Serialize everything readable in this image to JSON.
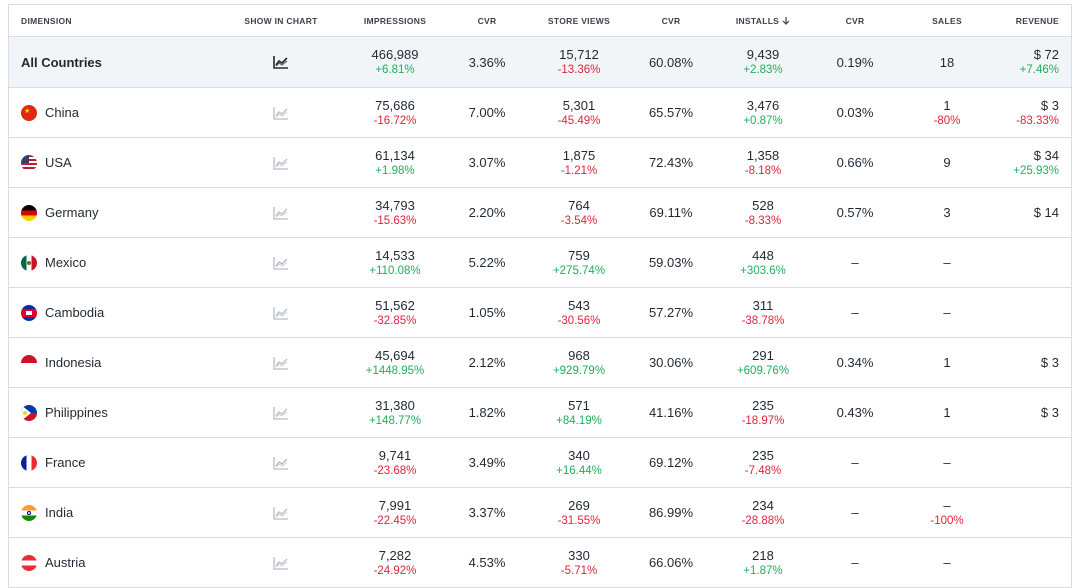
{
  "header": {
    "dimension": "DIMENSION",
    "show_in_chart": "SHOW IN CHART",
    "impressions": "IMPRESSIONS",
    "cvr1": "CVR",
    "store_views": "STORE VIEWS",
    "cvr2": "CVR",
    "installs": "INSTALLS",
    "installs_sort_icon": "arrow-down-icon",
    "cvr3": "CVR",
    "sales": "SALES",
    "revenue": "REVENUE"
  },
  "colors": {
    "positive": "#1fae5b",
    "negative": "#e0243a",
    "total_bg": "#f2f5f8",
    "border": "#d9dde3"
  },
  "total": {
    "name": "All Countries",
    "chart_icon": "chart-line-icon",
    "impressions": "466,989",
    "impressions_change": "+6.81%",
    "cvr1": "3.36%",
    "store_views": "15,712",
    "store_views_change": "-13.36%",
    "cvr2": "60.08%",
    "installs": "9,439",
    "installs_change": "+2.83%",
    "cvr3": "0.19%",
    "sales": "18",
    "revenue": "$ 72",
    "revenue_change": "+7.46%"
  },
  "rows": [
    {
      "name": "China",
      "flag": "china-flag-icon",
      "impressions": "75,686",
      "impressions_change": "-16.72%",
      "cvr1": "7.00%",
      "store_views": "5,301",
      "store_views_change": "-45.49%",
      "cvr2": "65.57%",
      "installs": "3,476",
      "installs_change": "+0.87%",
      "cvr3": "0.03%",
      "sales": "1",
      "sales_change": "-80%",
      "revenue": "$ 3",
      "revenue_change": "-83.33%"
    },
    {
      "name": "USA",
      "flag": "usa-flag-icon",
      "impressions": "61,134",
      "impressions_change": "+1.98%",
      "cvr1": "3.07%",
      "store_views": "1,875",
      "store_views_change": "-1.21%",
      "cvr2": "72.43%",
      "installs": "1,358",
      "installs_change": "-8.18%",
      "cvr3": "0.66%",
      "sales": "9",
      "sales_change": "",
      "revenue": "$ 34",
      "revenue_change": "+25.93%"
    },
    {
      "name": "Germany",
      "flag": "germany-flag-icon",
      "impressions": "34,793",
      "impressions_change": "-15.63%",
      "cvr1": "2.20%",
      "store_views": "764",
      "store_views_change": "-3.54%",
      "cvr2": "69.11%",
      "installs": "528",
      "installs_change": "-8.33%",
      "cvr3": "0.57%",
      "sales": "3",
      "sales_change": "",
      "revenue": "$ 14",
      "revenue_change": ""
    },
    {
      "name": "Mexico",
      "flag": "mexico-flag-icon",
      "impressions": "14,533",
      "impressions_change": "+110.08%",
      "cvr1": "5.22%",
      "store_views": "759",
      "store_views_change": "+275.74%",
      "cvr2": "59.03%",
      "installs": "448",
      "installs_change": "+303.6%",
      "cvr3": "–",
      "sales": "–",
      "sales_change": "",
      "revenue": "",
      "revenue_change": ""
    },
    {
      "name": "Cambodia",
      "flag": "cambodia-flag-icon",
      "impressions": "51,562",
      "impressions_change": "-32.85%",
      "cvr1": "1.05%",
      "store_views": "543",
      "store_views_change": "-30.56%",
      "cvr2": "57.27%",
      "installs": "311",
      "installs_change": "-38.78%",
      "cvr3": "–",
      "sales": "–",
      "sales_change": "",
      "revenue": "",
      "revenue_change": ""
    },
    {
      "name": "Indonesia",
      "flag": "indonesia-flag-icon",
      "impressions": "45,694",
      "impressions_change": "+1448.95%",
      "cvr1": "2.12%",
      "store_views": "968",
      "store_views_change": "+929.79%",
      "cvr2": "30.06%",
      "installs": "291",
      "installs_change": "+609.76%",
      "cvr3": "0.34%",
      "sales": "1",
      "sales_change": "",
      "revenue": "$ 3",
      "revenue_change": ""
    },
    {
      "name": "Philippines",
      "flag": "philippines-flag-icon",
      "impressions": "31,380",
      "impressions_change": "+148.77%",
      "cvr1": "1.82%",
      "store_views": "571",
      "store_views_change": "+84.19%",
      "cvr2": "41.16%",
      "installs": "235",
      "installs_change": "-18.97%",
      "cvr3": "0.43%",
      "sales": "1",
      "sales_change": "",
      "revenue": "$ 3",
      "revenue_change": ""
    },
    {
      "name": "France",
      "flag": "france-flag-icon",
      "impressions": "9,741",
      "impressions_change": "-23.68%",
      "cvr1": "3.49%",
      "store_views": "340",
      "store_views_change": "+16.44%",
      "cvr2": "69.12%",
      "installs": "235",
      "installs_change": "-7.48%",
      "cvr3": "–",
      "sales": "–",
      "sales_change": "",
      "revenue": "",
      "revenue_change": ""
    },
    {
      "name": "India",
      "flag": "india-flag-icon",
      "impressions": "7,991",
      "impressions_change": "-22.45%",
      "cvr1": "3.37%",
      "store_views": "269",
      "store_views_change": "-31.55%",
      "cvr2": "86.99%",
      "installs": "234",
      "installs_change": "-28.88%",
      "cvr3": "–",
      "sales": "–",
      "sales_change": "-100%",
      "revenue": "",
      "revenue_change": ""
    },
    {
      "name": "Austria",
      "flag": "austria-flag-icon",
      "impressions": "7,282",
      "impressions_change": "-24.92%",
      "cvr1": "4.53%",
      "store_views": "330",
      "store_views_change": "-5.71%",
      "cvr2": "66.06%",
      "installs": "218",
      "installs_change": "+1.87%",
      "cvr3": "–",
      "sales": "–",
      "sales_change": "",
      "revenue": "",
      "revenue_change": ""
    }
  ]
}
